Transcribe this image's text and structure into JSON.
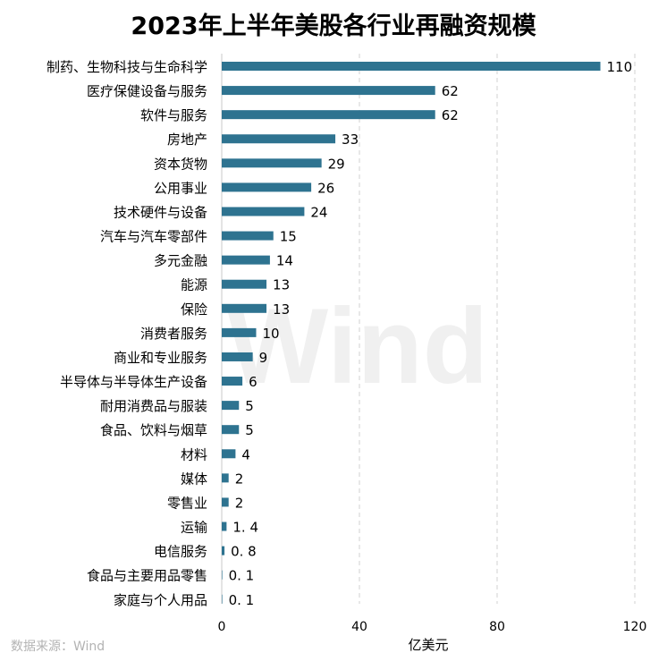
{
  "chart_data": {
    "type": "bar",
    "orientation": "horizontal",
    "title": "2023年上半年美股各行业再融资规模",
    "xlabel": "亿美元",
    "ylabel": "",
    "xlim": [
      0,
      120
    ],
    "xticks": [
      0,
      40,
      80,
      120
    ],
    "grid": "vertical-dashed",
    "categories": [
      "制药、生物科技与生命科学",
      "医疗保健设备与服务",
      "软件与服务",
      "房地产",
      "资本货物",
      "公用事业",
      "技术硬件与设备",
      "汽车与汽车零部件",
      "多元金融",
      "能源",
      "保险",
      "消费者服务",
      "商业和专业服务",
      "半导体与半导体生产设备",
      "耐用消费品与服装",
      "食品、饮料与烟草",
      "材料",
      "媒体",
      "零售业",
      "运输",
      "电信服务",
      "食品与主要用品零售",
      "家庭与个人用品"
    ],
    "values": [
      110,
      62,
      62,
      33,
      29,
      26,
      24,
      15,
      14,
      13,
      13,
      10,
      9,
      6,
      5,
      5,
      4,
      2,
      2,
      1.4,
      0.8,
      0.1,
      0.1
    ],
    "value_labels": [
      "110",
      "62",
      "62",
      "33",
      "29",
      "26",
      "24",
      "15",
      "14",
      "13",
      "13",
      "10",
      "9",
      "6",
      "5",
      "5",
      "4",
      "2",
      "2",
      "1. 4",
      "0. 8",
      "0. 1",
      "0. 1"
    ],
    "bar_color": "#2e7390",
    "source": "数据来源：Wind",
    "watermark": "Wind"
  }
}
